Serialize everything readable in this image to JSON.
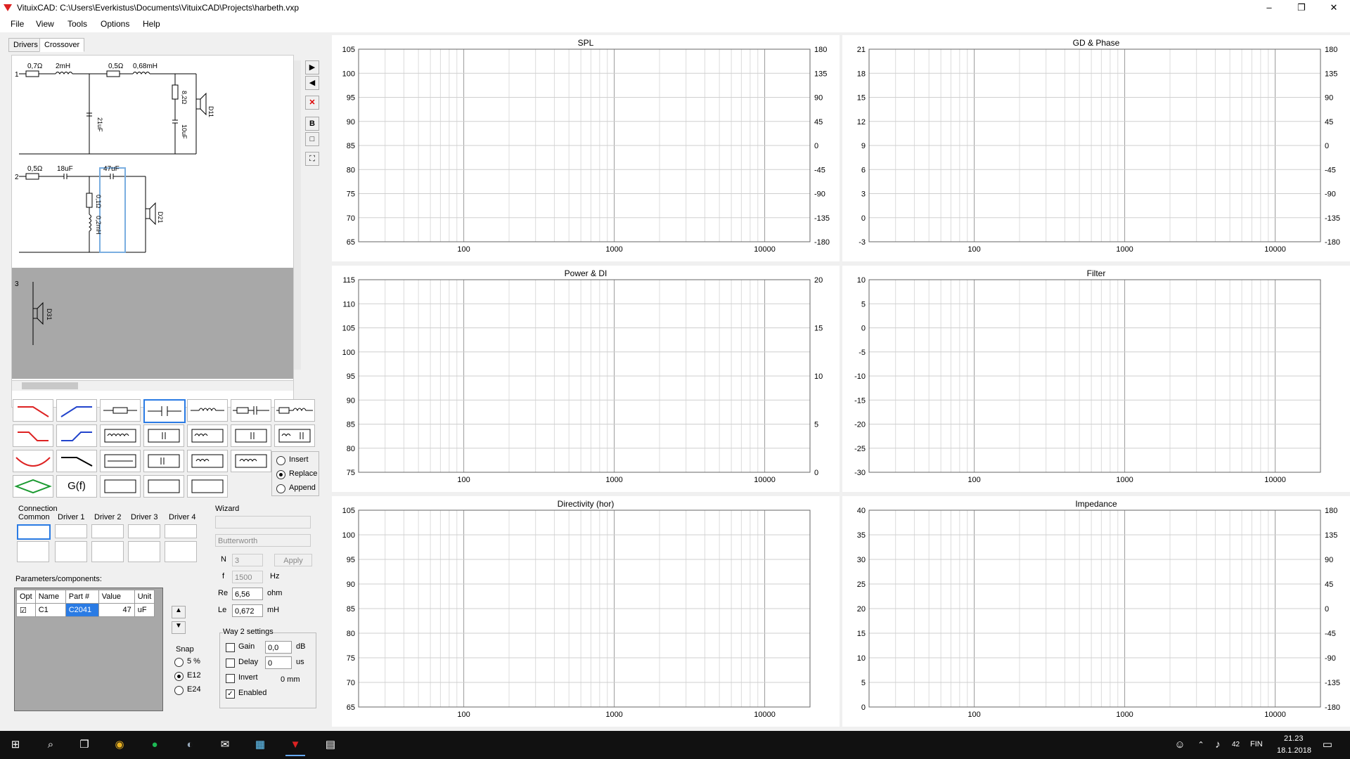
{
  "window": {
    "title": "VituixCAD: C:\\Users\\Everkistus\\Documents\\VituixCAD\\Projects\\harbeth.vxp",
    "minimize": "–",
    "maximize": "❐",
    "close": "✕"
  },
  "menu": [
    "File",
    "View",
    "Tools",
    "Options",
    "Help"
  ],
  "tabs": [
    "Drivers",
    "Crossover"
  ],
  "schematic": {
    "way1": {
      "index": "1",
      "r1": "0,7Ω",
      "l1": "2mH",
      "r2": "0,5Ω",
      "l2": "0,68mH",
      "c1": "21uF",
      "r3": "8,2Ω",
      "c2": "10uF",
      "driver": "D11"
    },
    "way2": {
      "index": "2",
      "r1": "0,5Ω",
      "c1": "18uF",
      "c2": "47uF",
      "r2": "0,1Ω",
      "l1": "0,2mH",
      "driver": "D21"
    },
    "way3": {
      "index": "3",
      "driver": "D31"
    }
  },
  "palette": {
    "gf": "G(f)"
  },
  "insert_mode": {
    "options": [
      "Insert",
      "Replace",
      "Append"
    ],
    "selected": "Replace"
  },
  "connection": {
    "title": "Connection",
    "columns": [
      "Common",
      "Driver 1",
      "Driver 2",
      "Driver 3",
      "Driver 4"
    ]
  },
  "wizard": {
    "title": "Wizard",
    "select": "",
    "filter_type": "Butterworth",
    "n_label": "N",
    "n_value": "3",
    "f_label": "f",
    "f_value": "1500",
    "f_unit": "Hz",
    "apply": "Apply",
    "re_label": "Re",
    "re_value": "6,56",
    "re_unit": "ohm",
    "le_label": "Le",
    "le_value": "0,672",
    "le_unit": "mH"
  },
  "parameters": {
    "title": "Parameters/components:",
    "headers": [
      "Opt",
      "Name",
      "Part #",
      "Value",
      "Unit"
    ],
    "rows": [
      {
        "opt": "☑",
        "name": "C1",
        "part": "C2041",
        "value": "47",
        "unit": "uF"
      }
    ]
  },
  "snap": {
    "title": "Snap",
    "options": [
      "5 %",
      "E12",
      "E24"
    ],
    "selected": "E12"
  },
  "way2settings": {
    "title": "Way 2 settings",
    "gain_label": "Gain",
    "gain_value": "0,0",
    "gain_unit": "dB",
    "delay_label": "Delay",
    "delay_value": "0",
    "delay_unit": "us",
    "invert_label": "Invert",
    "mm": "0 mm",
    "enabled_label": "Enabled"
  },
  "panels": [
    {
      "id": "spl",
      "title": "SPL",
      "left_ticks": [
        "105",
        "100",
        "95",
        "90",
        "85",
        "80",
        "75",
        "70",
        "65"
      ],
      "right_ticks": [
        "180",
        "135",
        "90",
        "45",
        "0",
        "-45",
        "-90",
        "-135",
        "-180"
      ]
    },
    {
      "id": "gd",
      "title": "GD & Phase",
      "left_ticks": [
        "21",
        "18",
        "15",
        "12",
        "9",
        "6",
        "3",
        "0",
        "-3"
      ],
      "right_ticks": [
        "180",
        "135",
        "90",
        "45",
        "0",
        "-45",
        "-90",
        "-135",
        "-180"
      ]
    },
    {
      "id": "power",
      "title": "Power & DI",
      "left_ticks": [
        "115",
        "110",
        "105",
        "100",
        "95",
        "90",
        "85",
        "80",
        "75"
      ],
      "right_ticks": [
        "20",
        "",
        "15",
        "",
        "10",
        "",
        "5",
        "",
        "0"
      ]
    },
    {
      "id": "filter",
      "title": "Filter",
      "left_ticks": [
        "10",
        "5",
        "0",
        "-5",
        "-10",
        "-15",
        "-20",
        "-25",
        "-30"
      ],
      "right_ticks": []
    },
    {
      "id": "dir",
      "title": "Directivity (hor)",
      "left_ticks": [
        "105",
        "100",
        "95",
        "90",
        "85",
        "80",
        "75",
        "70",
        "65"
      ],
      "right_ticks": []
    },
    {
      "id": "imp",
      "title": "Impedance",
      "left_ticks": [
        "40",
        "35",
        "30",
        "25",
        "20",
        "15",
        "10",
        "5",
        "0"
      ],
      "right_ticks": [
        "180",
        "135",
        "90",
        "45",
        "0",
        "-45",
        "-90",
        "-135",
        "-180"
      ]
    }
  ],
  "freq_labels": [
    "100",
    "1000",
    "10000"
  ],
  "taskbar": {
    "time": "21.23",
    "date": "18.1.2018",
    "lang": "FIN",
    "battery": "42"
  }
}
